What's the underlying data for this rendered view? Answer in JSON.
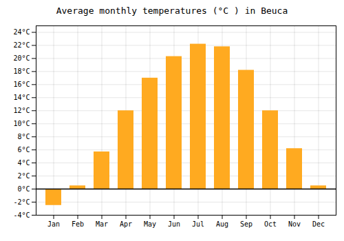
{
  "chart_data": {
    "type": "bar",
    "title": "Average monthly temperatures (°C ) in Beuca",
    "categories": [
      "Jan",
      "Feb",
      "Mar",
      "Apr",
      "May",
      "Jun",
      "Jul",
      "Aug",
      "Sep",
      "Oct",
      "Nov",
      "Dec"
    ],
    "values": [
      -2.5,
      0.5,
      5.7,
      12.0,
      17.0,
      20.3,
      22.2,
      21.8,
      18.2,
      12.0,
      6.2,
      0.5
    ],
    "color": "#FFAA20",
    "ylim": [
      -4,
      25
    ],
    "yticks": [
      {
        "value": -4,
        "label": "-4°C"
      },
      {
        "value": -2,
        "label": "-2°C"
      },
      {
        "value": 0,
        "label": "0°C"
      },
      {
        "value": 2,
        "label": "2°C"
      },
      {
        "value": 4,
        "label": "4°C"
      },
      {
        "value": 6,
        "label": "6°C"
      },
      {
        "value": 8,
        "label": "8°C"
      },
      {
        "value": 10,
        "label": "10°C"
      },
      {
        "value": 12,
        "label": "12°C"
      },
      {
        "value": 14,
        "label": "14°C"
      },
      {
        "value": 16,
        "label": "16°C"
      },
      {
        "value": 18,
        "label": "18°C"
      },
      {
        "value": 20,
        "label": "20°C"
      },
      {
        "value": 22,
        "label": "22°C"
      },
      {
        "value": 24,
        "label": "24°C"
      }
    ],
    "grid": true
  }
}
